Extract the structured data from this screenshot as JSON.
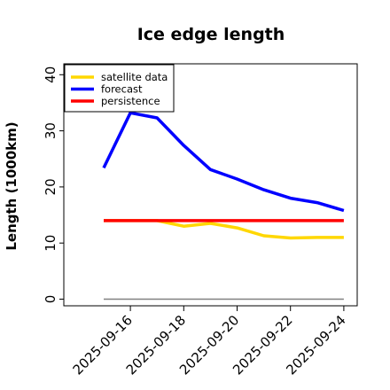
{
  "chart_data": {
    "type": "line",
    "title": "Ice edge length",
    "xlabel": "",
    "ylabel": "Length (1000km)",
    "x": [
      "2025-09-15",
      "2025-09-16",
      "2025-09-17",
      "2025-09-18",
      "2025-09-19",
      "2025-09-20",
      "2025-09-21",
      "2025-09-22",
      "2025-09-23",
      "2025-09-24"
    ],
    "x_tick_labels": [
      "2025-09-16",
      "2025-09-18",
      "2025-09-20",
      "2025-09-22",
      "2025-09-24"
    ],
    "highlighted_tick": "2025-09-16",
    "ylim": [
      -1,
      42
    ],
    "y_ticks": [
      0,
      10,
      20,
      30,
      40
    ],
    "series": [
      {
        "name": "satellite data",
        "color": "#ffd700",
        "values": [
          14.0,
          14.0,
          14.0,
          13.0,
          13.5,
          12.7,
          11.3,
          10.9,
          11.0,
          11.0
        ]
      },
      {
        "name": "forecast",
        "color": "#0000ff",
        "values": [
          23.4,
          33.2,
          32.3,
          27.4,
          23.1,
          21.4,
          19.5,
          18.0,
          17.2,
          15.8
        ]
      },
      {
        "name": "persistence",
        "color": "#ff0000",
        "values": [
          14.0,
          14.0,
          14.0,
          14.0,
          14.0,
          14.0,
          14.0,
          14.0,
          14.0,
          14.0
        ]
      }
    ],
    "reference_line": {
      "y": 0,
      "color": "#808080"
    },
    "legend_position": "top-left",
    "grid": false,
    "tick_label_colors": {
      "highlight": "#228b22",
      "default": "#000000"
    }
  }
}
